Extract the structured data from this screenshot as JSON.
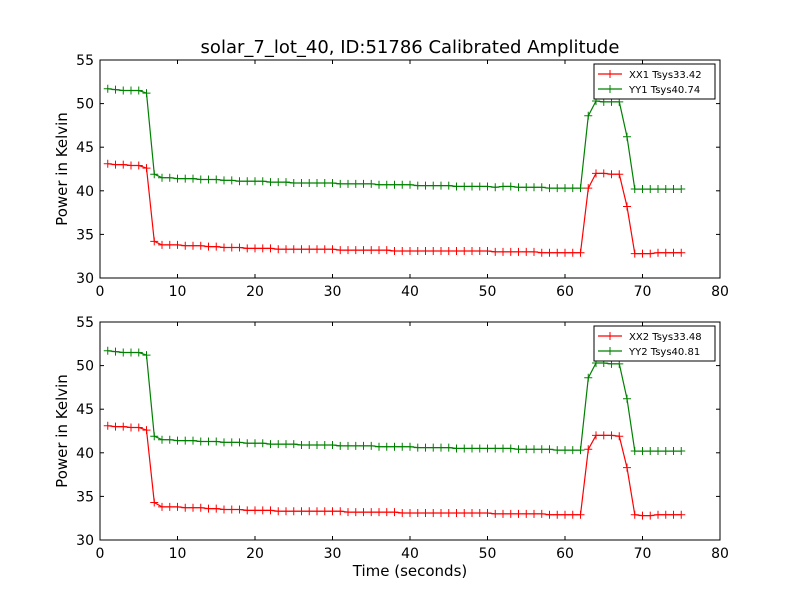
{
  "title": "solar_7_lot_40, ID:51786 Calibrated Amplitude",
  "chart_data": [
    {
      "type": "line",
      "ylabel": "Power in Kelvin",
      "xlabel": "",
      "xlim": [
        0,
        80
      ],
      "ylim": [
        30,
        55
      ],
      "xticks": [
        "0",
        "10",
        "20",
        "30",
        "40",
        "50",
        "60",
        "70",
        "80"
      ],
      "yticks": [
        "30",
        "35",
        "40",
        "45",
        "50",
        "55"
      ],
      "grid": false,
      "legend_position": "top-right",
      "x": [
        1,
        2,
        3,
        4,
        5,
        6,
        7,
        8,
        9,
        10,
        11,
        12,
        13,
        14,
        15,
        16,
        17,
        18,
        19,
        20,
        21,
        22,
        23,
        24,
        25,
        26,
        27,
        28,
        29,
        30,
        31,
        32,
        33,
        34,
        35,
        36,
        37,
        38,
        39,
        40,
        41,
        42,
        43,
        44,
        45,
        46,
        47,
        48,
        49,
        50,
        51,
        52,
        53,
        54,
        55,
        56,
        57,
        58,
        59,
        60,
        61,
        62,
        63,
        64,
        65,
        66,
        67,
        68,
        69,
        70,
        71,
        72,
        73,
        74,
        75
      ],
      "series": [
        {
          "name": "XX1 Tsys33.42",
          "color": "#ff0000",
          "values": [
            43.1,
            43.0,
            43.0,
            42.9,
            42.9,
            42.6,
            34.2,
            33.8,
            33.8,
            33.8,
            33.7,
            33.7,
            33.7,
            33.6,
            33.6,
            33.5,
            33.5,
            33.5,
            33.4,
            33.4,
            33.4,
            33.4,
            33.3,
            33.3,
            33.3,
            33.3,
            33.3,
            33.3,
            33.3,
            33.3,
            33.2,
            33.2,
            33.2,
            33.2,
            33.2,
            33.2,
            33.2,
            33.1,
            33.1,
            33.1,
            33.1,
            33.1,
            33.1,
            33.1,
            33.1,
            33.1,
            33.1,
            33.1,
            33.1,
            33.1,
            33.0,
            33.0,
            33.0,
            33.0,
            33.0,
            33.0,
            32.9,
            32.9,
            32.9,
            32.9,
            32.9,
            32.9,
            40.3,
            42.0,
            42.0,
            41.9,
            41.9,
            38.2,
            32.8,
            32.8,
            32.8,
            32.9,
            32.9,
            32.9,
            32.9
          ]
        },
        {
          "name": "YY1 Tsys40.74",
          "color": "#008000",
          "values": [
            51.7,
            51.6,
            51.5,
            51.5,
            51.5,
            51.2,
            41.9,
            41.5,
            41.5,
            41.4,
            41.4,
            41.4,
            41.3,
            41.3,
            41.3,
            41.2,
            41.2,
            41.1,
            41.1,
            41.1,
            41.1,
            41.0,
            41.0,
            41.0,
            40.9,
            40.9,
            40.9,
            40.9,
            40.9,
            40.9,
            40.8,
            40.8,
            40.8,
            40.8,
            40.8,
            40.7,
            40.7,
            40.7,
            40.7,
            40.7,
            40.6,
            40.6,
            40.6,
            40.6,
            40.6,
            40.5,
            40.5,
            40.5,
            40.5,
            40.5,
            40.4,
            40.5,
            40.5,
            40.4,
            40.4,
            40.4,
            40.4,
            40.3,
            40.3,
            40.3,
            40.3,
            40.3,
            48.6,
            50.3,
            50.2,
            50.2,
            50.2,
            46.2,
            40.2,
            40.2,
            40.2,
            40.2,
            40.2,
            40.2,
            40.2
          ]
        }
      ]
    },
    {
      "type": "line",
      "ylabel": "Power in Kelvin",
      "xlabel": "Time (seconds)",
      "xlim": [
        0,
        80
      ],
      "ylim": [
        30,
        55
      ],
      "xticks": [
        "0",
        "10",
        "20",
        "30",
        "40",
        "50",
        "60",
        "70",
        "80"
      ],
      "yticks": [
        "30",
        "35",
        "40",
        "45",
        "50",
        "55"
      ],
      "grid": false,
      "legend_position": "top-right",
      "x": [
        1,
        2,
        3,
        4,
        5,
        6,
        7,
        8,
        9,
        10,
        11,
        12,
        13,
        14,
        15,
        16,
        17,
        18,
        19,
        20,
        21,
        22,
        23,
        24,
        25,
        26,
        27,
        28,
        29,
        30,
        31,
        32,
        33,
        34,
        35,
        36,
        37,
        38,
        39,
        40,
        41,
        42,
        43,
        44,
        45,
        46,
        47,
        48,
        49,
        50,
        51,
        52,
        53,
        54,
        55,
        56,
        57,
        58,
        59,
        60,
        61,
        62,
        63,
        64,
        65,
        66,
        67,
        68,
        69,
        70,
        71,
        72,
        73,
        74,
        75
      ],
      "series": [
        {
          "name": "XX2 Tsys33.48",
          "color": "#ff0000",
          "values": [
            43.1,
            43.0,
            43.0,
            42.9,
            42.9,
            42.6,
            34.3,
            33.8,
            33.8,
            33.8,
            33.7,
            33.7,
            33.7,
            33.6,
            33.6,
            33.5,
            33.5,
            33.5,
            33.4,
            33.4,
            33.4,
            33.4,
            33.3,
            33.3,
            33.3,
            33.3,
            33.3,
            33.3,
            33.3,
            33.3,
            33.3,
            33.2,
            33.2,
            33.2,
            33.2,
            33.2,
            33.2,
            33.2,
            33.1,
            33.1,
            33.1,
            33.1,
            33.1,
            33.1,
            33.1,
            33.1,
            33.1,
            33.1,
            33.1,
            33.1,
            33.0,
            33.0,
            33.0,
            33.0,
            33.0,
            33.0,
            33.0,
            32.9,
            32.9,
            32.9,
            32.9,
            32.9,
            40.4,
            42.0,
            42.0,
            42.0,
            41.9,
            38.3,
            32.9,
            32.8,
            32.8,
            32.9,
            32.9,
            32.9,
            32.9
          ]
        },
        {
          "name": "YY2 Tsys40.81",
          "color": "#008000",
          "values": [
            51.7,
            51.6,
            51.5,
            51.5,
            51.5,
            51.2,
            41.9,
            41.5,
            41.5,
            41.4,
            41.4,
            41.4,
            41.3,
            41.3,
            41.3,
            41.2,
            41.2,
            41.2,
            41.1,
            41.1,
            41.1,
            41.0,
            41.0,
            41.0,
            41.0,
            40.9,
            40.9,
            40.9,
            40.9,
            40.9,
            40.8,
            40.8,
            40.8,
            40.8,
            40.8,
            40.7,
            40.7,
            40.7,
            40.7,
            40.7,
            40.6,
            40.6,
            40.6,
            40.6,
            40.6,
            40.5,
            40.5,
            40.5,
            40.5,
            40.5,
            40.5,
            40.5,
            40.5,
            40.4,
            40.4,
            40.4,
            40.4,
            40.4,
            40.3,
            40.3,
            40.3,
            40.3,
            48.6,
            50.3,
            50.3,
            50.2,
            50.2,
            46.2,
            40.2,
            40.2,
            40.2,
            40.2,
            40.2,
            40.2,
            40.2
          ]
        }
      ]
    }
  ]
}
